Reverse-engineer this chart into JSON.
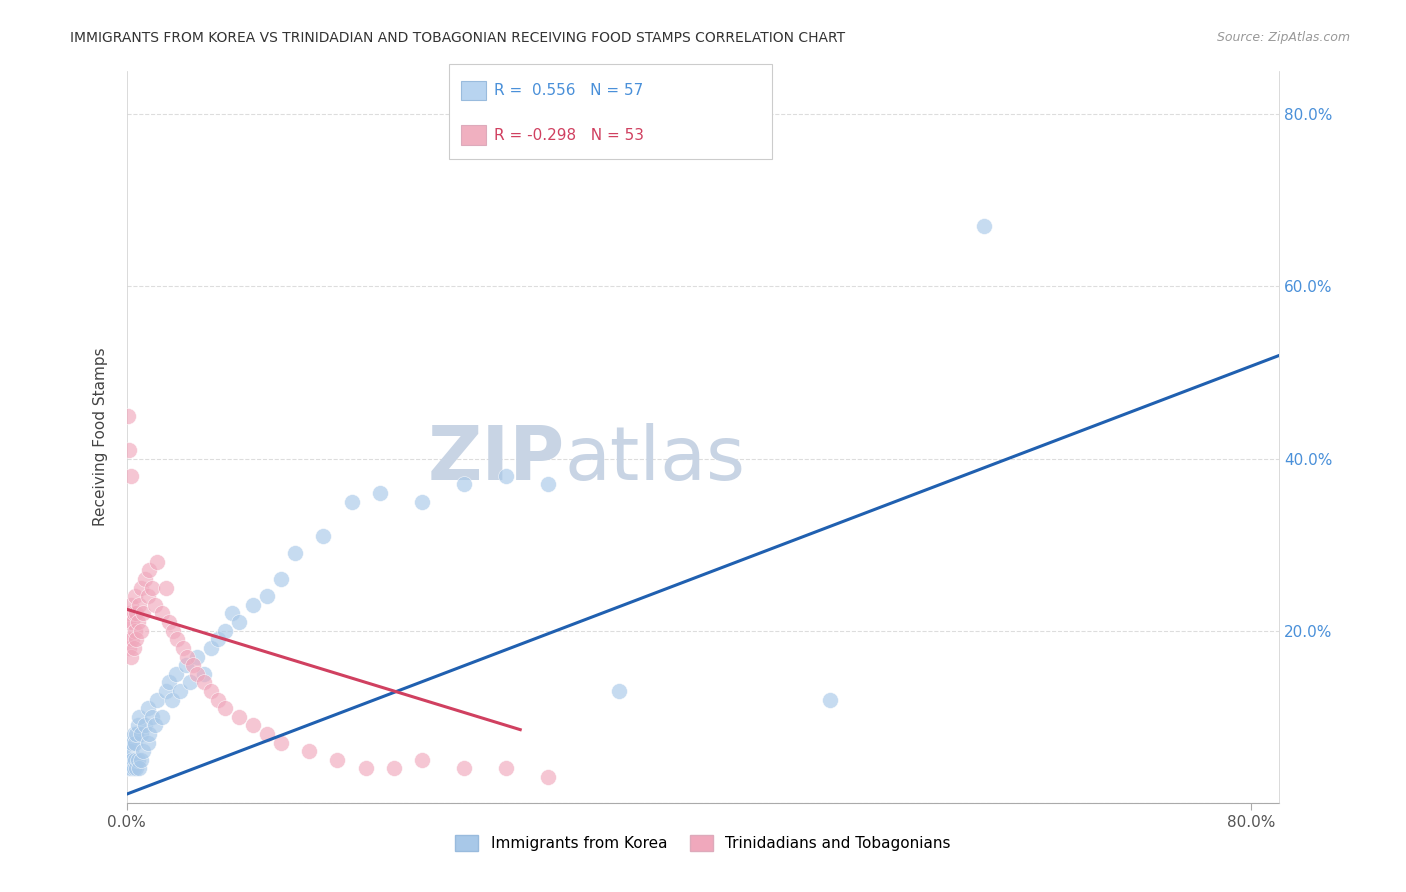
{
  "title": "IMMIGRANTS FROM KOREA VS TRINIDADIAN AND TOBAGONIAN RECEIVING FOOD STAMPS CORRELATION CHART",
  "source": "Source: ZipAtlas.com",
  "ylabel": "Receiving Food Stamps",
  "legend_label1": "Immigrants from Korea",
  "legend_label2": "Trinidadians and Tobagonians",
  "blue_color": "#a8c8e8",
  "pink_color": "#f0a8bc",
  "blue_line_color": "#2060b0",
  "pink_line_color": "#d04060",
  "watermark_zip": "ZIP",
  "watermark_atlas": "atlas",
  "watermark_color": "#c8d4e4",
  "xlim": [
    0.0,
    0.82
  ],
  "ylim": [
    0.0,
    0.85
  ],
  "blue_line_x0": 0.0,
  "blue_line_y0": 0.01,
  "blue_line_x1": 0.82,
  "blue_line_y1": 0.52,
  "pink_line_x0": 0.0,
  "pink_line_y0": 0.225,
  "pink_line_x1": 0.28,
  "pink_line_y1": 0.085,
  "r_korea": "0.556",
  "n_korea": "57",
  "r_trin": "-0.298",
  "n_trin": "53",
  "korea_x": [
    0.001,
    0.001,
    0.002,
    0.002,
    0.003,
    0.003,
    0.004,
    0.004,
    0.005,
    0.005,
    0.006,
    0.006,
    0.007,
    0.007,
    0.008,
    0.008,
    0.009,
    0.009,
    0.01,
    0.01,
    0.012,
    0.013,
    0.015,
    0.015,
    0.016,
    0.018,
    0.02,
    0.022,
    0.025,
    0.028,
    0.03,
    0.032,
    0.035,
    0.038,
    0.042,
    0.045,
    0.05,
    0.055,
    0.06,
    0.065,
    0.07,
    0.075,
    0.08,
    0.09,
    0.1,
    0.11,
    0.12,
    0.14,
    0.16,
    0.18,
    0.21,
    0.24,
    0.27,
    0.3,
    0.35,
    0.5,
    0.61
  ],
  "korea_y": [
    0.04,
    0.06,
    0.05,
    0.07,
    0.04,
    0.06,
    0.05,
    0.07,
    0.04,
    0.08,
    0.05,
    0.07,
    0.04,
    0.08,
    0.05,
    0.09,
    0.04,
    0.1,
    0.05,
    0.08,
    0.06,
    0.09,
    0.07,
    0.11,
    0.08,
    0.1,
    0.09,
    0.12,
    0.1,
    0.13,
    0.14,
    0.12,
    0.15,
    0.13,
    0.16,
    0.14,
    0.17,
    0.15,
    0.18,
    0.19,
    0.2,
    0.22,
    0.21,
    0.23,
    0.24,
    0.26,
    0.29,
    0.31,
    0.35,
    0.36,
    0.35,
    0.37,
    0.38,
    0.37,
    0.13,
    0.12,
    0.67
  ],
  "trin_x": [
    0.001,
    0.001,
    0.002,
    0.002,
    0.003,
    0.003,
    0.004,
    0.004,
    0.005,
    0.005,
    0.006,
    0.006,
    0.007,
    0.007,
    0.008,
    0.009,
    0.01,
    0.01,
    0.012,
    0.013,
    0.015,
    0.016,
    0.018,
    0.02,
    0.022,
    0.025,
    0.028,
    0.03,
    0.033,
    0.036,
    0.04,
    0.043,
    0.047,
    0.05,
    0.055,
    0.06,
    0.065,
    0.07,
    0.08,
    0.09,
    0.1,
    0.11,
    0.13,
    0.15,
    0.17,
    0.19,
    0.21,
    0.24,
    0.27,
    0.3,
    0.001,
    0.002,
    0.003
  ],
  "trin_y": [
    0.19,
    0.21,
    0.18,
    0.22,
    0.17,
    0.23,
    0.19,
    0.21,
    0.18,
    0.22,
    0.2,
    0.24,
    0.19,
    0.22,
    0.21,
    0.23,
    0.2,
    0.25,
    0.22,
    0.26,
    0.24,
    0.27,
    0.25,
    0.23,
    0.28,
    0.22,
    0.25,
    0.21,
    0.2,
    0.19,
    0.18,
    0.17,
    0.16,
    0.15,
    0.14,
    0.13,
    0.12,
    0.11,
    0.1,
    0.09,
    0.08,
    0.07,
    0.06,
    0.05,
    0.04,
    0.04,
    0.05,
    0.04,
    0.04,
    0.03,
    0.45,
    0.41,
    0.38
  ]
}
